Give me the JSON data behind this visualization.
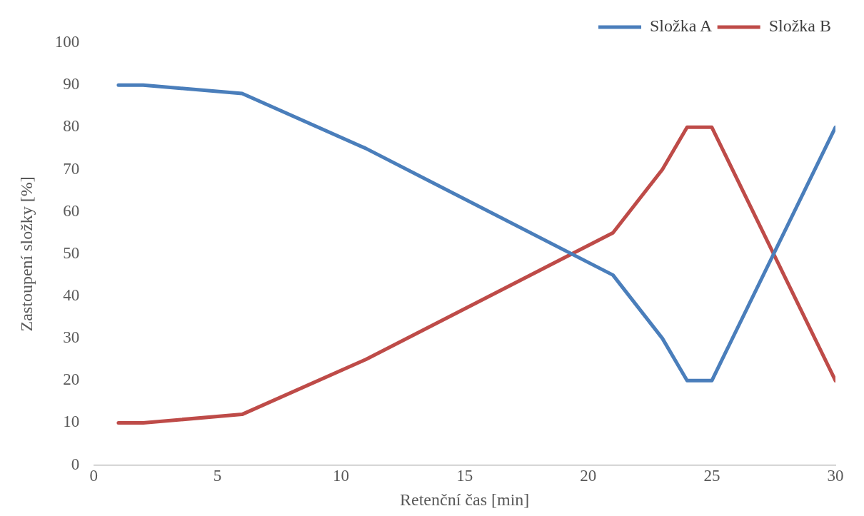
{
  "chart_data": {
    "type": "line",
    "xlabel": "Retenční čas [min]",
    "ylabel": "Zastoupení složky [%]",
    "xlim": [
      0,
      30
    ],
    "xticks": [
      0,
      5,
      10,
      15,
      20,
      25,
      30
    ],
    "ylim": [
      0,
      100
    ],
    "yticks": [
      0,
      10,
      20,
      30,
      40,
      50,
      60,
      70,
      80,
      90,
      100
    ],
    "grid": false,
    "legend": "top right",
    "marker": "none",
    "line_style": "solid",
    "x": [
      1,
      2,
      6,
      11,
      21,
      23,
      24,
      25,
      30
    ],
    "series": [
      {
        "name": "Složka A",
        "color": "#4a7ebb",
        "values": [
          90,
          90,
          88,
          75,
          45,
          30,
          20,
          20,
          80
        ]
      },
      {
        "name": "Složka B",
        "color": "#be4b48",
        "values": [
          10,
          10,
          12,
          25,
          55,
          70,
          80,
          80,
          20
        ]
      }
    ]
  }
}
